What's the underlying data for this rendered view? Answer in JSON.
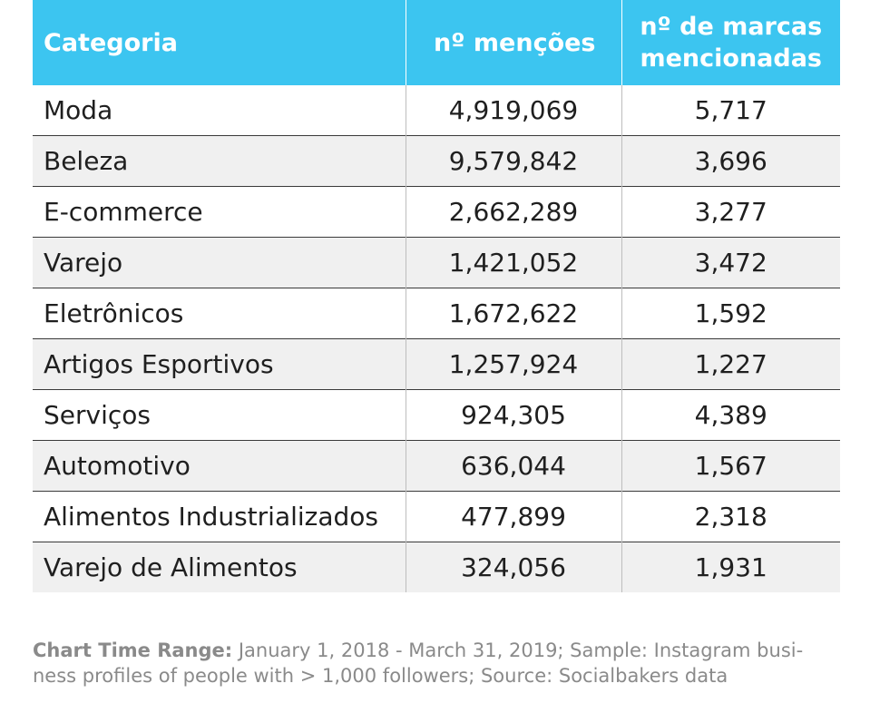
{
  "chart_data": {
    "type": "table",
    "columns": [
      "Categoria",
      "nº menções",
      "nº de marcas mencionadas"
    ],
    "rows": [
      {
        "categoria": "Moda",
        "mencoes": "4,919,069",
        "marcas": "5,717"
      },
      {
        "categoria": "Beleza",
        "mencoes": "9,579,842",
        "marcas": "3,696"
      },
      {
        "categoria": "E-commerce",
        "mencoes": "2,662,289",
        "marcas": "3,277"
      },
      {
        "categoria": "Varejo",
        "mencoes": "1,421,052",
        "marcas": "3,472"
      },
      {
        "categoria": "Eletrônicos",
        "mencoes": "1,672,622",
        "marcas": "1,592"
      },
      {
        "categoria": "Artigos Esportivos",
        "mencoes": "1,257,924",
        "marcas": "1,227"
      },
      {
        "categoria": "Serviços",
        "mencoes": "924,305",
        "marcas": "4,389"
      },
      {
        "categoria": "Automotivo",
        "mencoes": "636,044",
        "marcas": "1,567"
      },
      {
        "categoria": "Alimentos Industrializados",
        "mencoes": "477,899",
        "marcas": "2,318"
      },
      {
        "categoria": "Varejo de Alimentos",
        "mencoes": "324,056",
        "marcas": "1,931"
      }
    ],
    "header_color": "#3cc5f0"
  },
  "headers": {
    "categoria": "Categoria",
    "mencoes": "nº menções",
    "marcas_line1": "nº de marcas",
    "marcas_line2": "mencionadas"
  },
  "footnote": {
    "label": "Chart Time Range:",
    "text": "January 1, 2018 - March 31, 2019; Sample: Instagram busi-ness profiles of people with > 1,000 followers; Source: Socialbakers data"
  }
}
